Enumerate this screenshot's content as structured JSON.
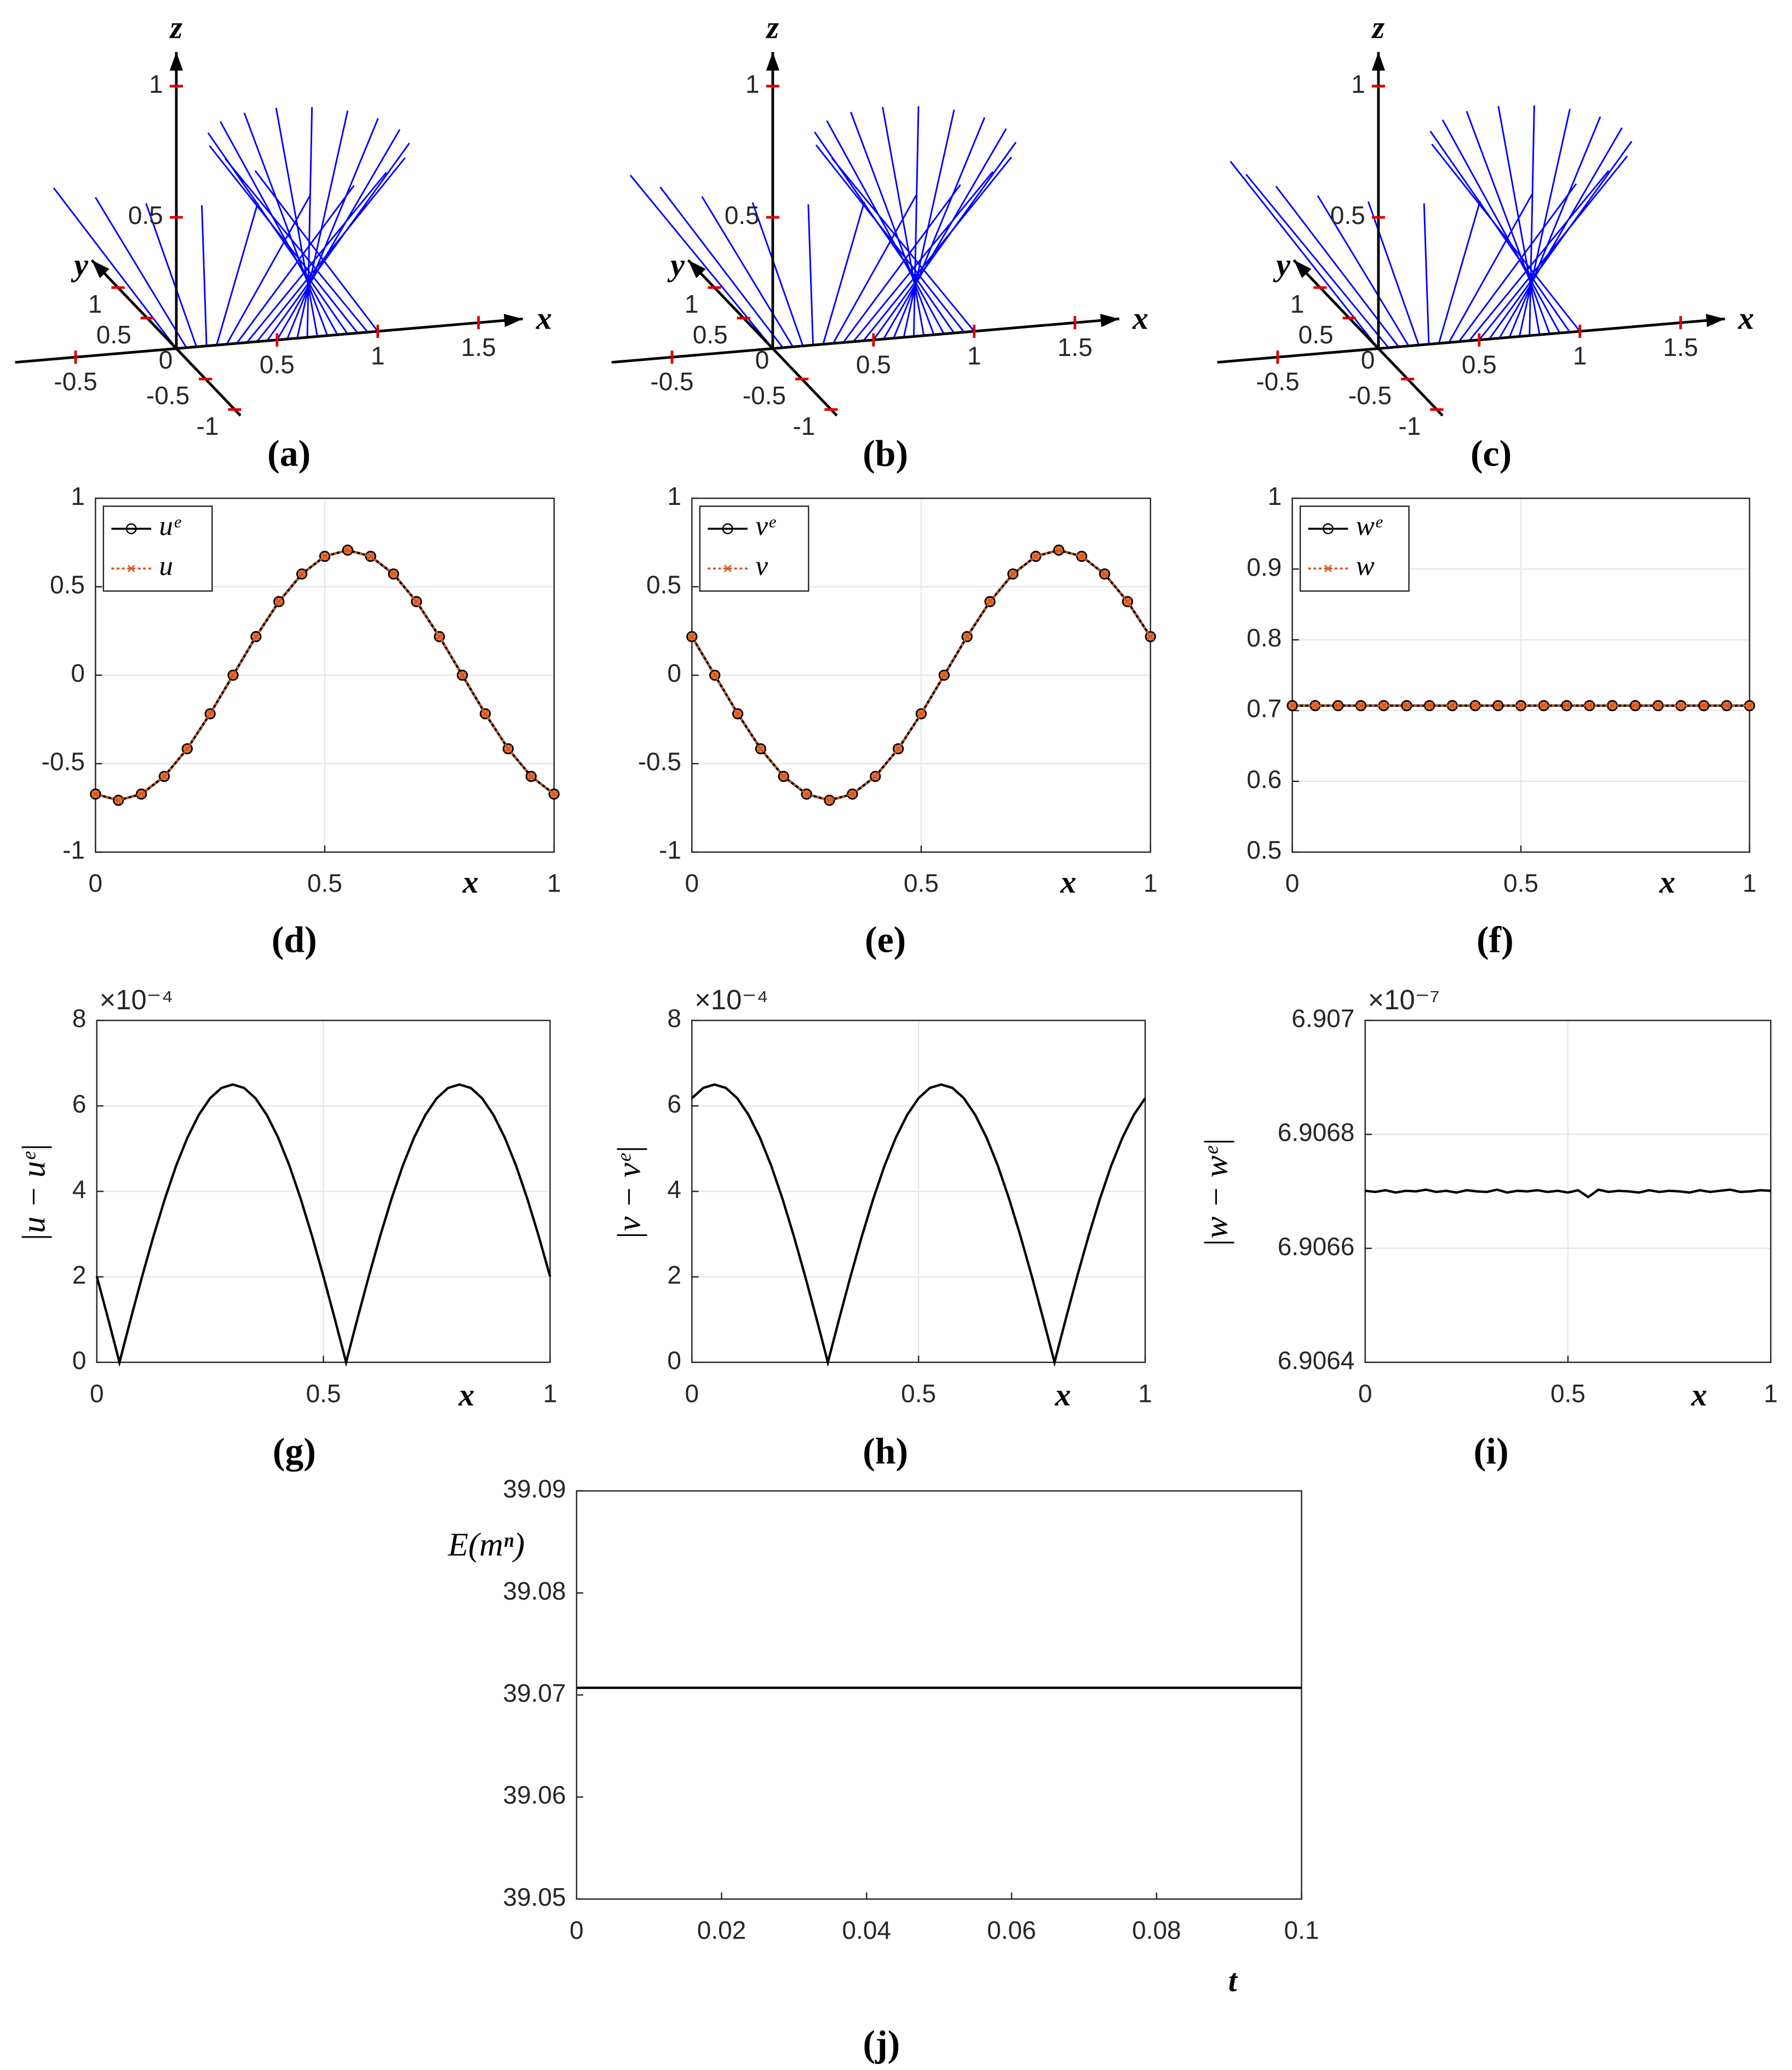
{
  "chart_data": [
    {
      "type": "quiver3d",
      "panel_label": "(a)",
      "color": "#0000ff",
      "xlabel": "x",
      "ylabel": "y",
      "zlabel": "z",
      "xlim": [
        -0.8,
        1.72
      ],
      "ylim": [
        -1.1,
        1.45
      ],
      "zlim": [
        0,
        1.13
      ],
      "xticks": [
        -0.5,
        0,
        0.5,
        1,
        1.5
      ],
      "yticks": [
        -1,
        -0.5,
        0.5,
        1
      ],
      "zticks": [
        0.5,
        1
      ],
      "x": [
        0,
        0.05,
        0.1,
        0.15,
        0.2,
        0.25,
        0.3,
        0.35,
        0.4,
        0.45,
        0.5,
        0.55,
        0.6,
        0.65,
        0.7,
        0.75,
        0.8,
        0.85,
        0.9,
        0.95,
        1
      ],
      "u": [
        -0.672,
        -0.572,
        -0.416,
        -0.218,
        0,
        0.218,
        0.416,
        0.572,
        0.672,
        0.707,
        0.672,
        0.572,
        0.416,
        0.218,
        0,
        -0.218,
        -0.416,
        -0.572,
        -0.672,
        -0.707,
        -0.672
      ],
      "v": [
        -0.218,
        -0.416,
        -0.572,
        -0.672,
        -0.707,
        -0.672,
        -0.572,
        -0.416,
        -0.218,
        0,
        0.218,
        0.416,
        0.572,
        0.672,
        0.707,
        0.672,
        0.572,
        0.416,
        0.218,
        0,
        -0.218
      ],
      "w": [
        0.707,
        0.707,
        0.707,
        0.707,
        0.707,
        0.707,
        0.707,
        0.707,
        0.707,
        0.707,
        0.707,
        0.707,
        0.707,
        0.707,
        0.707,
        0.707,
        0.707,
        0.707,
        0.707,
        0.707,
        0.707
      ]
    },
    {
      "type": "quiver3d",
      "panel_label": "(b)",
      "color": "#0000ff",
      "xlabel": "x",
      "ylabel": "y",
      "zlabel": "z",
      "xlim": [
        -0.8,
        1.72
      ],
      "ylim": [
        -1.1,
        1.45
      ],
      "zlim": [
        0,
        1.13
      ],
      "xticks": [
        -0.5,
        0,
        0.5,
        1,
        1.5
      ],
      "yticks": [
        -1,
        -0.5,
        0.5,
        1
      ],
      "zticks": [
        0.5,
        1
      ],
      "x": [
        0,
        0.05,
        0.1,
        0.15,
        0.2,
        0.25,
        0.3,
        0.35,
        0.4,
        0.45,
        0.5,
        0.55,
        0.6,
        0.65,
        0.7,
        0.75,
        0.8,
        0.85,
        0.9,
        0.95,
        1
      ],
      "u": [
        -0.707,
        -0.672,
        -0.572,
        -0.416,
        -0.218,
        0,
        0.218,
        0.416,
        0.572,
        0.672,
        0.707,
        0.672,
        0.572,
        0.416,
        0.218,
        0,
        -0.218,
        -0.416,
        -0.572,
        -0.672,
        -0.707
      ],
      "v": [
        0,
        -0.218,
        -0.416,
        -0.572,
        -0.672,
        -0.707,
        -0.672,
        -0.572,
        -0.416,
        -0.218,
        0,
        0.218,
        0.416,
        0.572,
        0.672,
        0.707,
        0.672,
        0.572,
        0.416,
        0.218,
        0
      ],
      "w": [
        0.707,
        0.707,
        0.707,
        0.707,
        0.707,
        0.707,
        0.707,
        0.707,
        0.707,
        0.707,
        0.707,
        0.707,
        0.707,
        0.707,
        0.707,
        0.707,
        0.707,
        0.707,
        0.707,
        0.707,
        0.707
      ]
    },
    {
      "type": "quiver3d",
      "panel_label": "(c)",
      "color": "#0000ff",
      "xlabel": "x",
      "ylabel": "y",
      "zlabel": "z",
      "xlim": [
        -0.8,
        1.72
      ],
      "ylim": [
        -1.1,
        1.45
      ],
      "zlim": [
        0,
        1.13
      ],
      "xticks": [
        -0.5,
        0,
        0.5,
        1,
        1.5
      ],
      "yticks": [
        -1,
        -0.5,
        0.5,
        1
      ],
      "zticks": [
        0.5,
        1
      ],
      "x": [
        0,
        0.05,
        0.1,
        0.15,
        0.2,
        0.25,
        0.3,
        0.35,
        0.4,
        0.45,
        0.5,
        0.55,
        0.6,
        0.65,
        0.7,
        0.75,
        0.8,
        0.85,
        0.9,
        0.95,
        1
      ],
      "u": [
        -0.672,
        -0.707,
        -0.672,
        -0.572,
        -0.416,
        -0.218,
        0,
        0.218,
        0.416,
        0.572,
        0.672,
        0.707,
        0.672,
        0.572,
        0.416,
        0.218,
        0,
        -0.218,
        -0.416,
        -0.572,
        -0.672
      ],
      "v": [
        0.218,
        0,
        -0.218,
        -0.416,
        -0.572,
        -0.672,
        -0.707,
        -0.672,
        -0.572,
        -0.416,
        -0.218,
        0,
        0.218,
        0.416,
        0.572,
        0.672,
        0.707,
        0.672,
        0.572,
        0.416,
        0.218
      ],
      "w": [
        0.707,
        0.707,
        0.707,
        0.707,
        0.707,
        0.707,
        0.707,
        0.707,
        0.707,
        0.707,
        0.707,
        0.707,
        0.707,
        0.707,
        0.707,
        0.707,
        0.707,
        0.707,
        0.707,
        0.707,
        0.707
      ]
    },
    {
      "type": "line",
      "panel_label": "(d)",
      "xlabel": "x",
      "grid": true,
      "legend": "upper left",
      "xlim": [
        0,
        1
      ],
      "ylim": [
        -1,
        1
      ],
      "xticks": [
        0,
        0.5,
        1
      ],
      "yticks": [
        -1,
        -0.5,
        0,
        0.5,
        1
      ],
      "x": [
        0,
        0.05,
        0.1,
        0.15,
        0.2,
        0.25,
        0.3,
        0.35,
        0.4,
        0.45,
        0.5,
        0.55,
        0.6,
        0.65,
        0.7,
        0.75,
        0.8,
        0.85,
        0.9,
        0.95,
        1
      ],
      "series": [
        {
          "name": "uᵉ",
          "color": "#000000",
          "marker": "o",
          "values": [
            -0.672,
            -0.707,
            -0.672,
            -0.572,
            -0.416,
            -0.218,
            0,
            0.218,
            0.416,
            0.572,
            0.672,
            0.707,
            0.672,
            0.572,
            0.416,
            0.218,
            0,
            -0.218,
            -0.416,
            -0.572,
            -0.672
          ]
        },
        {
          "name": "u",
          "color": "#d95319",
          "marker": "x",
          "values": [
            -0.672,
            -0.707,
            -0.672,
            -0.572,
            -0.416,
            -0.218,
            0,
            0.218,
            0.416,
            0.572,
            0.672,
            0.707,
            0.672,
            0.572,
            0.416,
            0.218,
            0,
            -0.218,
            -0.416,
            -0.572,
            -0.672
          ]
        }
      ]
    },
    {
      "type": "line",
      "panel_label": "(e)",
      "xlabel": "x",
      "grid": true,
      "legend": "upper left",
      "xlim": [
        0,
        1
      ],
      "ylim": [
        -1,
        1
      ],
      "xticks": [
        0,
        0.5,
        1
      ],
      "yticks": [
        -1,
        -0.5,
        0,
        0.5,
        1
      ],
      "x": [
        0,
        0.05,
        0.1,
        0.15,
        0.2,
        0.25,
        0.3,
        0.35,
        0.4,
        0.45,
        0.5,
        0.55,
        0.6,
        0.65,
        0.7,
        0.75,
        0.8,
        0.85,
        0.9,
        0.95,
        1
      ],
      "series": [
        {
          "name": "vᵉ",
          "color": "#000000",
          "marker": "o",
          "values": [
            0.218,
            0,
            -0.218,
            -0.416,
            -0.572,
            -0.672,
            -0.707,
            -0.672,
            -0.572,
            -0.416,
            -0.218,
            0,
            0.218,
            0.416,
            0.572,
            0.672,
            0.707,
            0.672,
            0.572,
            0.416,
            0.218
          ]
        },
        {
          "name": "v",
          "color": "#d95319",
          "marker": "x",
          "values": [
            0.218,
            0,
            -0.218,
            -0.416,
            -0.572,
            -0.672,
            -0.707,
            -0.672,
            -0.572,
            -0.416,
            -0.218,
            0,
            0.218,
            0.416,
            0.572,
            0.672,
            0.707,
            0.672,
            0.572,
            0.416,
            0.218
          ]
        }
      ]
    },
    {
      "type": "line",
      "panel_label": "(f)",
      "xlabel": "x",
      "grid": true,
      "legend": "upper left",
      "xlim": [
        0,
        1
      ],
      "ylim": [
        0.5,
        1
      ],
      "xticks": [
        0,
        0.5,
        1
      ],
      "yticks": [
        0.5,
        0.6,
        0.7,
        0.8,
        0.9,
        1
      ],
      "x": [
        0,
        0.05,
        0.1,
        0.15,
        0.2,
        0.25,
        0.3,
        0.35,
        0.4,
        0.45,
        0.5,
        0.55,
        0.6,
        0.65,
        0.7,
        0.75,
        0.8,
        0.85,
        0.9,
        0.95,
        1
      ],
      "series": [
        {
          "name": "wᵉ",
          "color": "#000000",
          "marker": "o",
          "values": [
            0.707,
            0.707,
            0.707,
            0.707,
            0.707,
            0.707,
            0.707,
            0.707,
            0.707,
            0.707,
            0.707,
            0.707,
            0.707,
            0.707,
            0.707,
            0.707,
            0.707,
            0.707,
            0.707,
            0.707,
            0.707
          ]
        },
        {
          "name": "w",
          "color": "#d95319",
          "marker": "x",
          "values": [
            0.707,
            0.707,
            0.707,
            0.707,
            0.707,
            0.707,
            0.707,
            0.707,
            0.707,
            0.707,
            0.707,
            0.707,
            0.707,
            0.707,
            0.707,
            0.707,
            0.707,
            0.707,
            0.707,
            0.707,
            0.707
          ]
        }
      ]
    },
    {
      "type": "line",
      "panel_label": "(g)",
      "xlabel": "x",
      "ylabel": "|u − uᵉ|",
      "y_multiplier": "×10⁻⁴",
      "grid": true,
      "xlim": [
        0,
        1
      ],
      "ylim": [
        0,
        8
      ],
      "xticks": [
        0,
        0.5,
        1
      ],
      "yticks": [
        0,
        2,
        4,
        6,
        8
      ],
      "x": [
        0,
        0.025,
        0.05,
        0.075,
        0.1,
        0.125,
        0.15,
        0.175,
        0.2,
        0.225,
        0.25,
        0.275,
        0.3,
        0.325,
        0.35,
        0.375,
        0.4,
        0.425,
        0.45,
        0.475,
        0.5,
        0.525,
        0.55,
        0.575,
        0.6,
        0.625,
        0.65,
        0.675,
        0.7,
        0.725,
        0.75,
        0.775,
        0.8,
        0.825,
        0.85,
        0.875,
        0.9,
        0.925,
        0.95,
        0.975,
        1
      ],
      "series": [
        {
          "color": "#000000",
          "values": [
            2.01,
            1.02,
            0,
            1.02,
            2.01,
            2.95,
            3.82,
            4.6,
            5.26,
            5.79,
            6.18,
            6.42,
            6.5,
            6.42,
            6.18,
            5.79,
            5.26,
            4.6,
            3.82,
            2.95,
            2.01,
            1.02,
            0,
            1.02,
            2.01,
            2.95,
            3.82,
            4.6,
            5.26,
            5.79,
            6.18,
            6.42,
            6.5,
            6.42,
            6.18,
            5.79,
            5.26,
            4.6,
            3.82,
            2.95,
            2.01
          ]
        }
      ]
    },
    {
      "type": "line",
      "panel_label": "(h)",
      "xlabel": "x",
      "ylabel": "|v − vᵉ|",
      "y_multiplier": "×10⁻⁴",
      "grid": true,
      "xlim": [
        0,
        1
      ],
      "ylim": [
        0,
        8
      ],
      "xticks": [
        0,
        0.5,
        1
      ],
      "yticks": [
        0,
        2,
        4,
        6,
        8
      ],
      "x": [
        0,
        0.025,
        0.05,
        0.075,
        0.1,
        0.125,
        0.15,
        0.175,
        0.2,
        0.225,
        0.25,
        0.275,
        0.3,
        0.325,
        0.35,
        0.375,
        0.4,
        0.425,
        0.45,
        0.475,
        0.5,
        0.525,
        0.55,
        0.575,
        0.6,
        0.625,
        0.65,
        0.675,
        0.7,
        0.725,
        0.75,
        0.775,
        0.8,
        0.825,
        0.85,
        0.875,
        0.9,
        0.925,
        0.95,
        0.975,
        1
      ],
      "series": [
        {
          "color": "#000000",
          "values": [
            6.18,
            6.42,
            6.5,
            6.42,
            6.18,
            5.79,
            5.26,
            4.6,
            3.82,
            2.95,
            2.01,
            1.02,
            0,
            1.02,
            2.01,
            2.95,
            3.82,
            4.6,
            5.26,
            5.79,
            6.18,
            6.42,
            6.5,
            6.42,
            6.18,
            5.79,
            5.26,
            4.6,
            3.82,
            2.95,
            2.01,
            1.02,
            0,
            1.02,
            2.01,
            2.95,
            3.82,
            4.6,
            5.26,
            5.79,
            6.18
          ]
        }
      ]
    },
    {
      "type": "line",
      "panel_label": "(i)",
      "xlabel": "x",
      "ylabel": "|w − wᵉ|",
      "y_multiplier": "×10⁻⁷",
      "grid": true,
      "xlim": [
        0,
        1
      ],
      "ylim": [
        6.9064,
        6.907
      ],
      "xticks": [
        0,
        0.5,
        1
      ],
      "yticks": [
        6.9064,
        6.9066,
        6.9068,
        6.907
      ],
      "x": [
        0,
        0.025,
        0.05,
        0.075,
        0.1,
        0.125,
        0.15,
        0.175,
        0.2,
        0.225,
        0.25,
        0.275,
        0.3,
        0.325,
        0.35,
        0.375,
        0.4,
        0.425,
        0.45,
        0.475,
        0.5,
        0.525,
        0.55,
        0.575,
        0.6,
        0.625,
        0.65,
        0.675,
        0.7,
        0.725,
        0.75,
        0.775,
        0.8,
        0.825,
        0.85,
        0.875,
        0.9,
        0.925,
        0.95,
        0.975,
        1
      ],
      "series": [
        {
          "color": "#000000",
          "values": [
            6.906701,
            6.906699,
            6.906702,
            6.906698,
            6.906701,
            6.9067,
            6.906703,
            6.906699,
            6.906701,
            6.906698,
            6.906702,
            6.9067,
            6.906699,
            6.906703,
            6.906698,
            6.906701,
            6.9067,
            6.906702,
            6.906699,
            6.906701,
            6.906698,
            6.906702,
            6.90669,
            6.906703,
            6.906699,
            6.906701,
            6.9067,
            6.906698,
            6.906702,
            6.906699,
            6.906701,
            6.9067,
            6.906698,
            6.906702,
            6.906699,
            6.906701,
            6.906703,
            6.906699,
            6.9067,
            6.906702,
            6.906701
          ]
        }
      ]
    },
    {
      "type": "line",
      "panel_label": "(j)",
      "xlabel": "t",
      "ylabel": "E(mⁿ)",
      "grid": false,
      "xlim": [
        0,
        0.1
      ],
      "ylim": [
        39.05,
        39.09
      ],
      "xticks": [
        0,
        0.02,
        0.04,
        0.06,
        0.08,
        0.1
      ],
      "yticks": [
        39.05,
        39.06,
        39.07,
        39.08,
        39.09
      ],
      "x": [
        0,
        0.1
      ],
      "series": [
        {
          "color": "#000000",
          "values": [
            39.0707,
            39.0707
          ]
        }
      ]
    }
  ]
}
